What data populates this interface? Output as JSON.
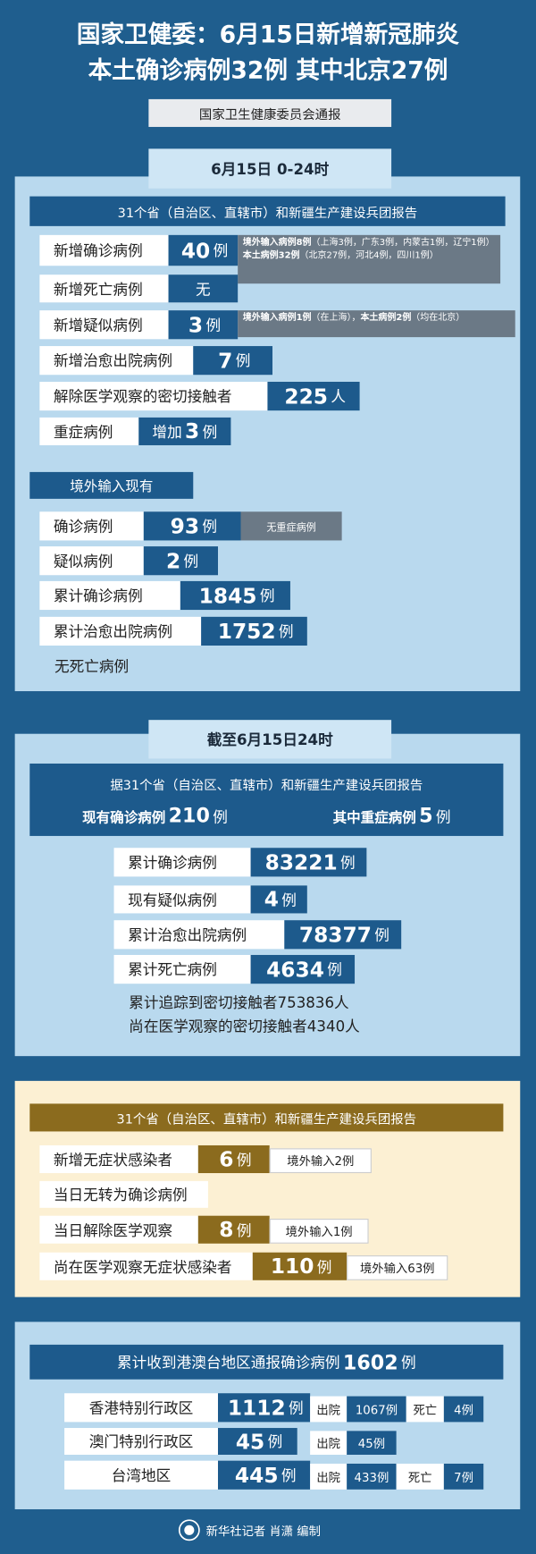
{
  "header": {
    "title": [
      "国家卫健委：6月15日新增新冠肺炎",
      "本土确诊病例32例 其中北京27例"
    ],
    "source": "国家卫生健康委员会通报"
  },
  "daily": {
    "tab": "6月15日 0-24时",
    "banner": "31个省（自治区、直辖市）和新疆生产建设兵团报告",
    "rows": [
      {
        "label": "新增确诊病例",
        "value": [
          "40",
          "例"
        ],
        "note": [
          [
            "境外输入病例8例",
            "（上海3例，广东3例，内蒙古1例，辽宁1例）"
          ],
          [
            "本土病例32例",
            "（北京27例，河北4例，四川1例）"
          ]
        ]
      },
      {
        "label": "新增死亡病例",
        "value": [
          "无"
        ]
      },
      {
        "label": "新增疑似病例",
        "value": [
          "3",
          "例"
        ],
        "note": [
          [
            "境外输入病例1例",
            "（在上海），",
            "本土病例2例",
            "（均在北京）"
          ]
        ]
      },
      {
        "label": "新增治愈出院病例",
        "value": [
          "7",
          "例"
        ]
      },
      {
        "label": "解除医学观察的密切接触者",
        "value": [
          "225",
          "人"
        ]
      },
      {
        "label": "重症病例",
        "value": [
          "增加",
          "3",
          "例"
        ]
      }
    ],
    "imported": {
      "banner": "境外输入现有",
      "rows": [
        {
          "label": "确诊病例",
          "value": [
            "93",
            "例"
          ],
          "note": "无重症病例"
        },
        {
          "label": "疑似病例",
          "value": [
            "2",
            "例"
          ]
        },
        {
          "label": "累计确诊病例",
          "value": [
            "1845",
            "例"
          ]
        },
        {
          "label": "累计治愈出院病例",
          "value": [
            "1752",
            "例"
          ]
        }
      ],
      "footnote": "无死亡病例"
    }
  },
  "cumulative": {
    "tab": "截至6月15日24时",
    "banner": "据31个省（自治区、直辖市）和新疆生产建设兵团报告",
    "current": {
      "label": "现有确诊病例",
      "value": [
        "210",
        "例"
      ]
    },
    "severe": {
      "label": "其中重症病例",
      "value": [
        "5",
        "例"
      ]
    },
    "rows": [
      {
        "label": "累计确诊病例",
        "value": [
          "83221",
          "例"
        ]
      },
      {
        "label": "现有疑似病例",
        "value": [
          "4",
          "例"
        ]
      },
      {
        "label": "累计治愈出院病例",
        "value": [
          "78377",
          "例"
        ]
      },
      {
        "label": "累计死亡病例",
        "value": [
          "4634",
          "例"
        ]
      }
    ],
    "texts": [
      "累计追踪到密切接触者753836人",
      "尚在医学观察的密切接触者4340人"
    ]
  },
  "asymptomatic": {
    "banner": "31个省（自治区、直辖市）和新疆生产建设兵团报告",
    "rows": [
      {
        "label": "新增无症状感染者",
        "value": [
          "6",
          "例"
        ],
        "note": "境外输入2例"
      },
      {
        "label": "当日无转为确诊病例"
      },
      {
        "label": "当日解除医学观察",
        "value": [
          "8",
          "例"
        ],
        "note": "境外输入1例"
      },
      {
        "label": "尚在医学观察无症状感染者",
        "value": [
          "110",
          "例"
        ],
        "note": "境外输入63例"
      }
    ]
  },
  "hmt": {
    "banner": [
      "累计收到港澳台地区通报确诊病例",
      "1602",
      "例"
    ],
    "rows": [
      {
        "label": "香港特别行政区",
        "value": [
          "1112",
          "例"
        ],
        "stats": [
          {
            "label": "出院",
            "value": "1067例"
          },
          {
            "label": "死亡",
            "value": "4例"
          }
        ]
      },
      {
        "label": "澳门特别行政区",
        "value": [
          "45",
          "例"
        ],
        "stats": [
          {
            "label": "出院",
            "value": "45例"
          }
        ]
      },
      {
        "label": "台湾地区",
        "value": [
          "445",
          "例"
        ],
        "stats": [
          {
            "label": "出院",
            "value": "433例"
          },
          {
            "label": "死亡",
            "value": "7例"
          }
        ]
      }
    ]
  },
  "footer": "新华社记者 肖潇 编制"
}
